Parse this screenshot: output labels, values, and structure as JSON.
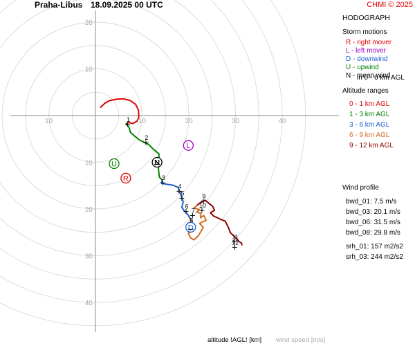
{
  "header": {
    "station": "Praha-Libus",
    "datetime": "18.09.2025 00 UTC",
    "copyright": "CHMI © 2025"
  },
  "sidebar": {
    "title": "HODOGRAPH",
    "storm_motions_title": "Storm motions",
    "storm_motions": [
      {
        "label": "R - right mover",
        "color": "#e00000"
      },
      {
        "label": "L - left mover",
        "color": "#a000c0"
      },
      {
        "label": "D - downwind",
        "color": "#1a5fd0"
      },
      {
        "label": "U - upwind",
        "color": "#008000"
      },
      {
        "label": "N - mean wind",
        "color": "#000000"
      }
    ],
    "mean_wind_sub": "in 0 - 6 km AGL",
    "altitude_title": "Altitude ranges",
    "altitude_ranges": [
      {
        "label": "0 - 1 km AGL",
        "color": "#e00000"
      },
      {
        "label": "1 - 3 km AGL",
        "color": "#008000"
      },
      {
        "label": "3 - 6 km AGL",
        "color": "#1a5fd0"
      },
      {
        "label": "6 - 9 km AGL",
        "color": "#d2691e"
      },
      {
        "label": "9 - 12 km AGL",
        "color": "#8b0000"
      }
    ],
    "wind_profile_title": "Wind profile",
    "wind_profile": [
      "bwd_01: 7.5 m/s",
      "bwd_03: 20.1 m/s",
      "bwd_06: 31.5 m/s",
      "bwd_08: 29.8 m/s",
      "srh_01: 157 m2/s2",
      "srh_03: 244 m2/s2"
    ]
  },
  "footer": {
    "altitude_label": "altitude !AGL! [km]",
    "speed_label": "wind speed [m/s]"
  },
  "chart_data": {
    "type": "line",
    "rings": [
      5,
      10,
      15,
      20,
      25,
      30,
      35,
      40,
      45
    ],
    "ring_labels_x": [
      "10",
      "20",
      "30",
      "40"
    ],
    "ring_labels_y": [
      "20",
      "10",
      "10",
      "20",
      "30",
      "40"
    ],
    "series": [
      {
        "name": "0 - 1 km AGL",
        "color": "#e00000",
        "points": [
          [
            1,
            -1.7
          ],
          [
            2,
            -2.6
          ],
          [
            3,
            -3.2
          ],
          [
            4.5,
            -3.5
          ],
          [
            6,
            -3.6
          ],
          [
            7.5,
            -3.2
          ],
          [
            8.6,
            -2.4
          ],
          [
            9.2,
            -1.2
          ],
          [
            9.3,
            0.3
          ],
          [
            8.9,
            1.2
          ],
          [
            8,
            1.7
          ],
          [
            7.2,
            1.5
          ],
          [
            6.5,
            1.7
          ]
        ]
      },
      {
        "name": "1 - 3 km AGL",
        "color": "#008000",
        "points": [
          [
            6.5,
            1.7
          ],
          [
            7.2,
            2.5
          ],
          [
            7.5,
            3.6
          ],
          [
            8.4,
            4.4
          ],
          [
            9.4,
            5.2
          ],
          [
            11.4,
            6.2
          ],
          [
            12.4,
            7.2
          ],
          [
            13.6,
            8.2
          ],
          [
            13.6,
            9.7
          ],
          [
            13.5,
            11.6
          ],
          [
            13.7,
            13.2
          ],
          [
            14.3,
            13.8
          ]
        ]
      },
      {
        "name": "3 - 6 km AGL",
        "color": "#1a5fd0",
        "points": [
          [
            14.3,
            13.8
          ],
          [
            14.2,
            14.5
          ],
          [
            15.2,
            14.7
          ],
          [
            16.6,
            14.9
          ],
          [
            17.7,
            15.4
          ],
          [
            18,
            16.2
          ],
          [
            18.5,
            17.5
          ],
          [
            18.8,
            18.5
          ],
          [
            18.5,
            19.6
          ],
          [
            19,
            20.4
          ],
          [
            19.8,
            21.2
          ],
          [
            20.3,
            22.1
          ]
        ]
      },
      {
        "name": "6 - 9 km AGL",
        "color": "#d2691e",
        "points": [
          [
            20.3,
            22.1
          ],
          [
            20.9,
            23.2
          ],
          [
            21.3,
            23.9
          ],
          [
            20.8,
            24.8
          ],
          [
            19.9,
            25.1
          ],
          [
            20.3,
            26.1
          ],
          [
            21.1,
            26.6
          ],
          [
            22,
            25.8
          ],
          [
            22.6,
            24.8
          ],
          [
            23.1,
            23.9
          ],
          [
            22.3,
            23.1
          ],
          [
            23.7,
            22.4
          ],
          [
            23.2,
            21.4
          ],
          [
            22.5,
            21.9
          ],
          [
            22.6,
            20.9
          ],
          [
            21.7,
            20.7
          ],
          [
            22.2,
            20.1
          ],
          [
            21.1,
            19.8
          ],
          [
            21.8,
            19.2
          ]
        ]
      },
      {
        "name": "9 - 12 km AGL",
        "color": "#8b0000",
        "points": [
          [
            21.8,
            19.2
          ],
          [
            22.4,
            18.7
          ],
          [
            23.5,
            18.1
          ],
          [
            24.3,
            18.8
          ],
          [
            25.1,
            19.4
          ],
          [
            25.5,
            20.3
          ],
          [
            24.6,
            20.8
          ],
          [
            25.3,
            21.5
          ],
          [
            26.8,
            22.2
          ],
          [
            27.8,
            22.6
          ],
          [
            28.4,
            23.8
          ],
          [
            28.9,
            25.1
          ],
          [
            29.8,
            25.9
          ],
          [
            30.8,
            27
          ],
          [
            31.3,
            27.3
          ],
          [
            31.4,
            27.8
          ]
        ]
      }
    ],
    "level_markers": [
      {
        "label": "1",
        "x": 6.9,
        "y": 1.9
      },
      {
        "label": "2",
        "x": 10.8,
        "y": 5.8
      },
      {
        "label": "3",
        "x": 14.4,
        "y": 14.4
      },
      {
        "label": "4",
        "x": 17.9,
        "y": 16.2
      },
      {
        "label": "5",
        "x": 18.5,
        "y": 17.7
      },
      {
        "label": "6",
        "x": 19.4,
        "y": 20.5
      },
      {
        "label": "7",
        "x": 20.8,
        "y": 21.4
      },
      {
        "label": "8",
        "x": 20.4,
        "y": 23.5
      },
      {
        "label": "9",
        "x": 23.1,
        "y": 18.3
      },
      {
        "label": "10",
        "x": 22.8,
        "y": 20.3
      },
      {
        "label": "11",
        "x": 29.8,
        "y": 27.0
      },
      {
        "label": "12",
        "x": 29.8,
        "y": 28.2
      }
    ],
    "storm_motions": [
      {
        "label": "R",
        "x": 6.5,
        "y": 13.4,
        "color": "#e00000",
        "plus": false
      },
      {
        "label": "U",
        "x": 4.0,
        "y": 10.3,
        "color": "#008000",
        "plus": false
      },
      {
        "label": "L",
        "x": 19.9,
        "y": 6.4,
        "color": "#a000c0",
        "plus": false
      },
      {
        "label": "N",
        "x": 13.2,
        "y": 10.0,
        "color": "#000000",
        "plus": true
      },
      {
        "label": "D",
        "x": 20.4,
        "y": 23.9,
        "color": "#1a5fd0",
        "plus": true
      }
    ],
    "xlabel": "wind speed [m/s]",
    "ylabel": "",
    "xlim": [
      -20,
      45
    ],
    "ylim": [
      -20,
      45
    ]
  }
}
